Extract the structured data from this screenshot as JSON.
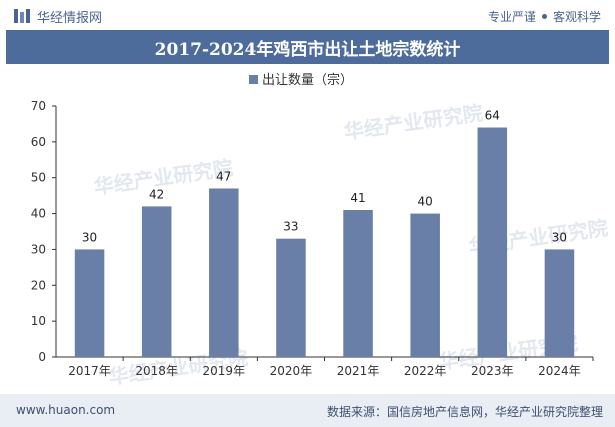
{
  "header": {
    "brand": "华经情报网",
    "slogan_left": "专业严谨",
    "slogan_right": "客观科学"
  },
  "chart_data": {
    "type": "bar",
    "title": "2017-2024年鸡西市出让土地宗数统计",
    "categories": [
      "2017年",
      "2018年",
      "2019年",
      "2020年",
      "2021年",
      "2022年",
      "2023年",
      "2024年"
    ],
    "series": [
      {
        "name": "出让数量（宗）",
        "values": [
          30,
          42,
          47,
          33,
          41,
          40,
          64,
          30
        ]
      }
    ],
    "ylim": [
      0,
      70
    ],
    "yticks": [
      0,
      10,
      20,
      30,
      40,
      50,
      60,
      70
    ],
    "xlabel": "",
    "ylabel": "",
    "legend_position": "top-center",
    "bar_color": "#6a7fa8"
  },
  "watermark": {
    "cn": "华经产业研究院",
    "en": "www.huaon.com"
  },
  "footer": {
    "website": "www.huaon.com",
    "source": "数据来源：国信房地产信息网，华经产业研究院整理"
  }
}
